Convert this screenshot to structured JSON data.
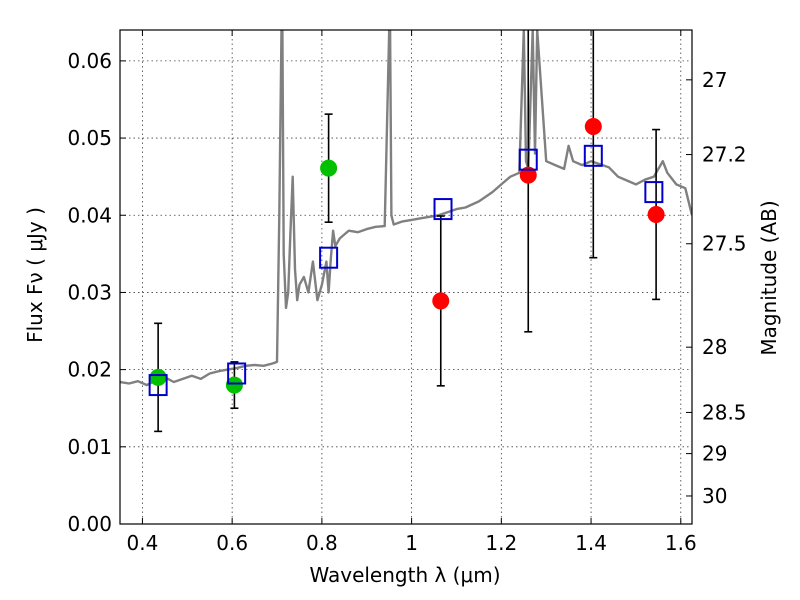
{
  "chart_data": {
    "type": "scatter",
    "xlabel": "Wavelength  λ (μm)",
    "ylabel": "Flux  Fν  ( μJy )",
    "ylabel_right": "Magnitude (AB)",
    "xlim": [
      0.35,
      1.625
    ],
    "ylim": [
      0.0,
      0.064
    ],
    "grid": true,
    "x_ticks": [
      0.4,
      0.6,
      0.8,
      1.0,
      1.2,
      1.4,
      1.6
    ],
    "x_tick_labels": [
      "0.4",
      "0.6",
      "0.8",
      "1",
      "1.2",
      "1.4",
      "1.6"
    ],
    "y_ticks": [
      0.0,
      0.01,
      0.02,
      0.03,
      0.04,
      0.05,
      0.06
    ],
    "y_tick_labels": [
      "0.00",
      "0.01",
      "0.02",
      "0.03",
      "0.04",
      "0.05",
      "0.06"
    ],
    "right_ticks": [
      27,
      27.2,
      27.5,
      28,
      28.5,
      29,
      30
    ],
    "right_tick_labels": [
      "27",
      "27.2",
      "27.5",
      "28",
      "28.5",
      "29",
      "30"
    ],
    "series": [
      {
        "kind": "line",
        "color": "#808080",
        "x": [
          0.35,
          0.37,
          0.39,
          0.41,
          0.43,
          0.45,
          0.47,
          0.49,
          0.51,
          0.53,
          0.55,
          0.57,
          0.59,
          0.61,
          0.63,
          0.65,
          0.67,
          0.69,
          0.7,
          0.705,
          0.71,
          0.712,
          0.715,
          0.72,
          0.725,
          0.73,
          0.735,
          0.74,
          0.745,
          0.75,
          0.76,
          0.77,
          0.78,
          0.79,
          0.8,
          0.81,
          0.815,
          0.82,
          0.825,
          0.83,
          0.84,
          0.85,
          0.86,
          0.88,
          0.9,
          0.92,
          0.94,
          0.95,
          0.952,
          0.955,
          0.96,
          0.98,
          1.0,
          1.02,
          1.04,
          1.06,
          1.08,
          1.1,
          1.12,
          1.15,
          1.18,
          1.2,
          1.22,
          1.24,
          1.25,
          1.255,
          1.26,
          1.27,
          1.275,
          1.28,
          1.3,
          1.32,
          1.34,
          1.35,
          1.36,
          1.38,
          1.4,
          1.42,
          1.44,
          1.46,
          1.48,
          1.5,
          1.52,
          1.54,
          1.56,
          1.57,
          1.59,
          1.61,
          1.625
        ],
        "y": [
          0.0184,
          0.0182,
          0.0185,
          0.018,
          0.0186,
          0.019,
          0.0184,
          0.0188,
          0.0192,
          0.0188,
          0.0195,
          0.0198,
          0.02,
          0.0202,
          0.0205,
          0.0206,
          0.0205,
          0.0208,
          0.021,
          0.04,
          0.064,
          0.064,
          0.035,
          0.028,
          0.03,
          0.038,
          0.045,
          0.033,
          0.029,
          0.031,
          0.032,
          0.03,
          0.034,
          0.029,
          0.031,
          0.034,
          0.03,
          0.0345,
          0.038,
          0.036,
          0.037,
          0.0375,
          0.038,
          0.0378,
          0.0382,
          0.0385,
          0.0386,
          0.064,
          0.064,
          0.04,
          0.0388,
          0.0392,
          0.0394,
          0.0396,
          0.0398,
          0.04,
          0.0404,
          0.0408,
          0.041,
          0.0418,
          0.043,
          0.044,
          0.045,
          0.0455,
          0.064,
          0.047,
          0.046,
          0.064,
          0.048,
          0.064,
          0.047,
          0.0465,
          0.046,
          0.049,
          0.047,
          0.0465,
          0.047,
          0.0466,
          0.0462,
          0.045,
          0.0445,
          0.044,
          0.0446,
          0.045,
          0.047,
          0.0455,
          0.044,
          0.0435,
          0.04
        ]
      },
      {
        "kind": "points",
        "name": "",
        "color": "#00c000",
        "marker": "circle",
        "x": [
          0.435,
          0.605,
          0.815
        ],
        "y": [
          0.019,
          0.018,
          0.0461
        ],
        "err": [
          0.007,
          0.003,
          0.007
        ]
      },
      {
        "kind": "points",
        "name": "",
        "color": "#ff0000",
        "marker": "circle",
        "x": [
          1.065,
          1.26,
          1.405,
          1.545
        ],
        "y": [
          0.0289,
          0.0452,
          0.0515,
          0.0401
        ],
        "err": [
          0.011,
          0.0203,
          0.017,
          0.011
        ]
      },
      {
        "kind": "points",
        "name": "",
        "color": "#0000cc",
        "marker": "open-square",
        "x": [
          0.435,
          0.61,
          0.815,
          1.07,
          1.26,
          1.405,
          1.54
        ],
        "y": [
          0.018,
          0.0195,
          0.0345,
          0.0408,
          0.0472,
          0.0477,
          0.043
        ]
      }
    ]
  }
}
